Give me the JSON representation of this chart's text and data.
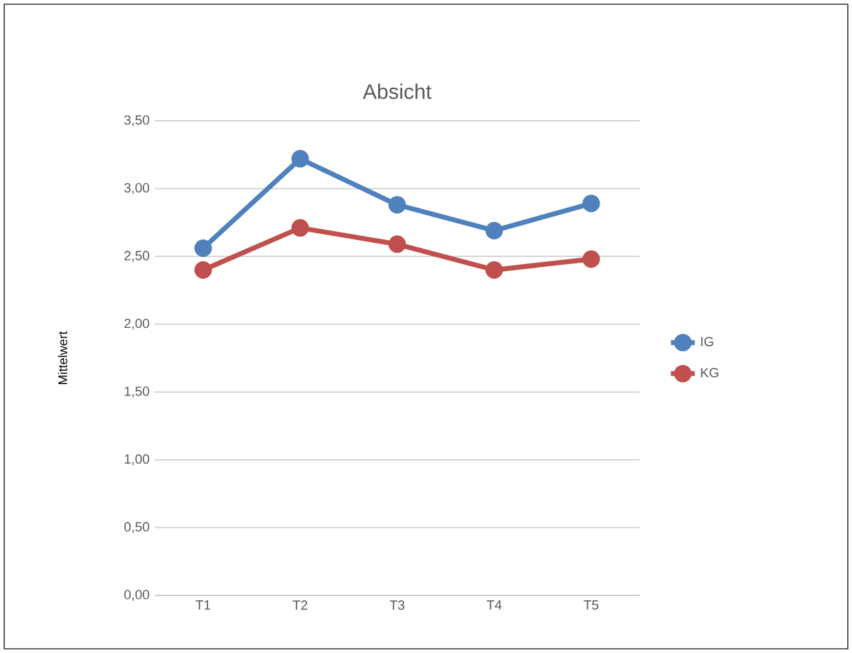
{
  "chart_data": {
    "type": "line",
    "title": "Absicht",
    "ylabel": "Mittelwert",
    "categories": [
      "T1",
      "T2",
      "T3",
      "T4",
      "T5"
    ],
    "series": [
      {
        "name": "IG",
        "color": "#4f81bd",
        "values": [
          2.56,
          3.22,
          2.88,
          2.69,
          2.89
        ]
      },
      {
        "name": "KG",
        "color": "#c0504d",
        "values": [
          2.4,
          2.71,
          2.59,
          2.4,
          2.48
        ]
      }
    ],
    "ylim": [
      0,
      3.5
    ],
    "yticks": [
      {
        "value": 0,
        "label": "0,00"
      },
      {
        "value": 0.5,
        "label": "0,50"
      },
      {
        "value": 1,
        "label": "1,00"
      },
      {
        "value": 1.5,
        "label": "1,50"
      },
      {
        "value": 2,
        "label": "2,00"
      },
      {
        "value": 2.5,
        "label": "2,50"
      },
      {
        "value": 3,
        "label": "3,00"
      },
      {
        "value": 3.5,
        "label": "3,50"
      }
    ],
    "grid": "y",
    "legend": "right",
    "marker": "circle",
    "line_style": "solid"
  }
}
